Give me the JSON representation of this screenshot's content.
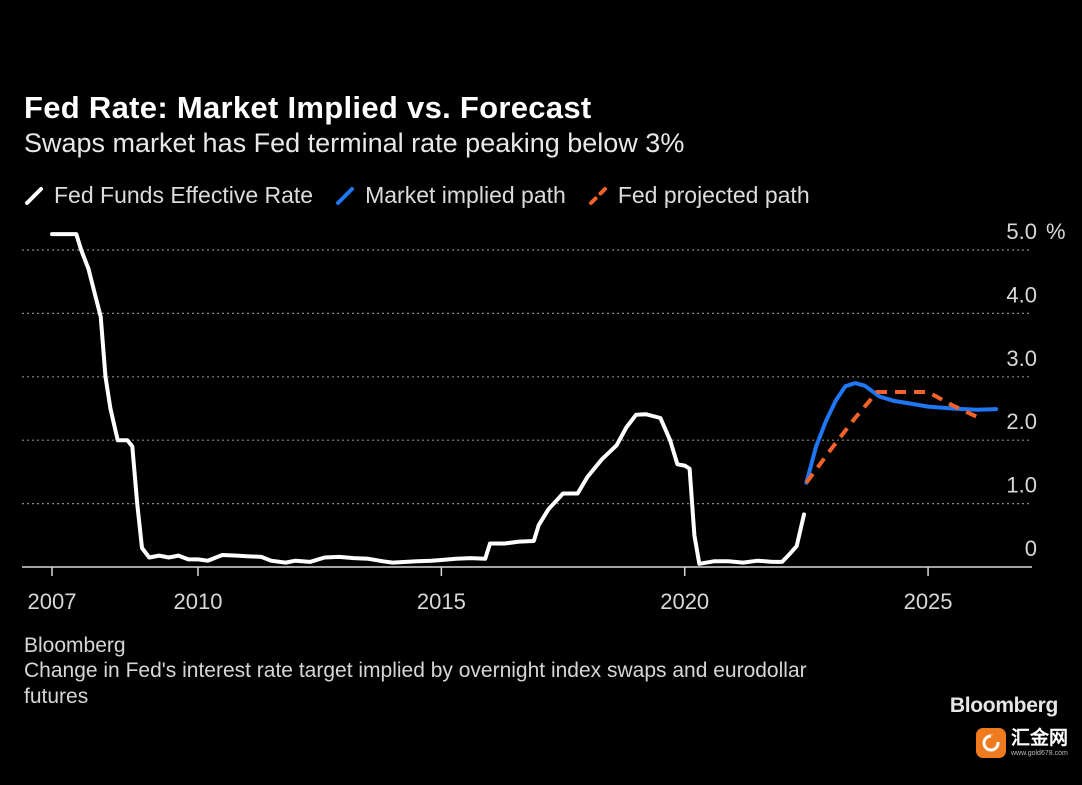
{
  "header": {
    "title": "Fed Rate: Market Implied vs. Forecast",
    "subtitle": "Swaps market has Fed terminal rate peaking below 3%"
  },
  "legend": [
    {
      "label": "Fed Funds Effective Rate",
      "color": "#ffffff"
    },
    {
      "label": "Market implied path",
      "color": "#1f77f4"
    },
    {
      "label": "Fed projected path",
      "color": "#f4622a"
    }
  ],
  "footer": {
    "source": "Bloomberg",
    "note": "Change in Fed's interest rate target implied by overnight index swaps and eurodollar futures",
    "brand": "Bloomberg"
  },
  "watermark": {
    "name": "汇金网",
    "url": "www.gold678.com"
  },
  "chart_data": {
    "type": "line",
    "title": "Fed Rate: Market Implied vs. Forecast",
    "subtitle": "Swaps market has Fed terminal rate peaking below 3%",
    "xlabel": "",
    "ylabel": "",
    "y_unit": "%",
    "xlim": [
      2007,
      2026.9
    ],
    "ylim": [
      0,
      5
    ],
    "x_ticks": [
      2007,
      2010,
      2015,
      2020,
      2025
    ],
    "y_ticks": [
      0,
      1,
      2,
      3,
      4,
      5
    ],
    "y_tick_labels": [
      "0",
      "1.0",
      "2.0",
      "3.0",
      "4.0",
      "5.0"
    ],
    "grid": true,
    "legend_position": "top-left",
    "series": [
      {
        "name": "Fed Funds Effective Rate",
        "color": "#ffffff",
        "dash": false,
        "points": [
          [
            2007.0,
            5.25
          ],
          [
            2007.5,
            5.25
          ],
          [
            2007.6,
            5.0
          ],
          [
            2007.75,
            4.7
          ],
          [
            2007.9,
            4.25
          ],
          [
            2008.0,
            3.95
          ],
          [
            2008.1,
            3.0
          ],
          [
            2008.2,
            2.5
          ],
          [
            2008.35,
            2.0
          ],
          [
            2008.55,
            2.0
          ],
          [
            2008.65,
            1.9
          ],
          [
            2008.75,
            1.0
          ],
          [
            2008.85,
            0.3
          ],
          [
            2009.0,
            0.15
          ],
          [
            2009.2,
            0.18
          ],
          [
            2009.4,
            0.15
          ],
          [
            2009.6,
            0.18
          ],
          [
            2009.8,
            0.12
          ],
          [
            2010.0,
            0.12
          ],
          [
            2010.2,
            0.1
          ],
          [
            2010.5,
            0.19
          ],
          [
            2010.8,
            0.18
          ],
          [
            2011.0,
            0.17
          ],
          [
            2011.3,
            0.16
          ],
          [
            2011.5,
            0.1
          ],
          [
            2011.8,
            0.07
          ],
          [
            2012.0,
            0.1
          ],
          [
            2012.3,
            0.08
          ],
          [
            2012.6,
            0.15
          ],
          [
            2012.9,
            0.16
          ],
          [
            2013.2,
            0.14
          ],
          [
            2013.5,
            0.13
          ],
          [
            2013.8,
            0.09
          ],
          [
            2014.0,
            0.07
          ],
          [
            2014.5,
            0.09
          ],
          [
            2014.8,
            0.1
          ],
          [
            2015.0,
            0.11
          ],
          [
            2015.3,
            0.13
          ],
          [
            2015.6,
            0.14
          ],
          [
            2015.9,
            0.13
          ],
          [
            2016.0,
            0.37
          ],
          [
            2016.3,
            0.37
          ],
          [
            2016.6,
            0.4
          ],
          [
            2016.9,
            0.41
          ],
          [
            2017.0,
            0.66
          ],
          [
            2017.2,
            0.91
          ],
          [
            2017.5,
            1.16
          ],
          [
            2017.8,
            1.16
          ],
          [
            2018.0,
            1.42
          ],
          [
            2018.3,
            1.7
          ],
          [
            2018.6,
            1.92
          ],
          [
            2018.8,
            2.2
          ],
          [
            2019.0,
            2.4
          ],
          [
            2019.2,
            2.41
          ],
          [
            2019.5,
            2.35
          ],
          [
            2019.7,
            2.0
          ],
          [
            2019.85,
            1.62
          ],
          [
            2020.0,
            1.6
          ],
          [
            2020.1,
            1.55
          ],
          [
            2020.2,
            0.5
          ],
          [
            2020.3,
            0.05
          ],
          [
            2020.6,
            0.09
          ],
          [
            2020.9,
            0.09
          ],
          [
            2021.2,
            0.07
          ],
          [
            2021.5,
            0.1
          ],
          [
            2021.8,
            0.08
          ],
          [
            2022.0,
            0.08
          ],
          [
            2022.15,
            0.2
          ],
          [
            2022.3,
            0.33
          ],
          [
            2022.45,
            0.83
          ]
        ]
      },
      {
        "name": "Market implied path",
        "color": "#1f77f4",
        "dash": false,
        "points": [
          [
            2022.5,
            1.33
          ],
          [
            2022.7,
            1.9
          ],
          [
            2022.9,
            2.3
          ],
          [
            2023.1,
            2.62
          ],
          [
            2023.3,
            2.85
          ],
          [
            2023.5,
            2.9
          ],
          [
            2023.7,
            2.86
          ],
          [
            2024.0,
            2.69
          ],
          [
            2024.3,
            2.62
          ],
          [
            2024.7,
            2.57
          ],
          [
            2025.0,
            2.53
          ],
          [
            2025.5,
            2.5
          ],
          [
            2026.0,
            2.48
          ],
          [
            2026.4,
            2.49
          ]
        ]
      },
      {
        "name": "Fed projected path",
        "color": "#f4622a",
        "dash": true,
        "points": [
          [
            2022.5,
            1.33
          ],
          [
            2023.0,
            1.85
          ],
          [
            2023.5,
            2.35
          ],
          [
            2023.95,
            2.76
          ],
          [
            2024.5,
            2.76
          ],
          [
            2025.0,
            2.76
          ],
          [
            2025.5,
            2.55
          ],
          [
            2026.0,
            2.37
          ]
        ]
      }
    ]
  }
}
